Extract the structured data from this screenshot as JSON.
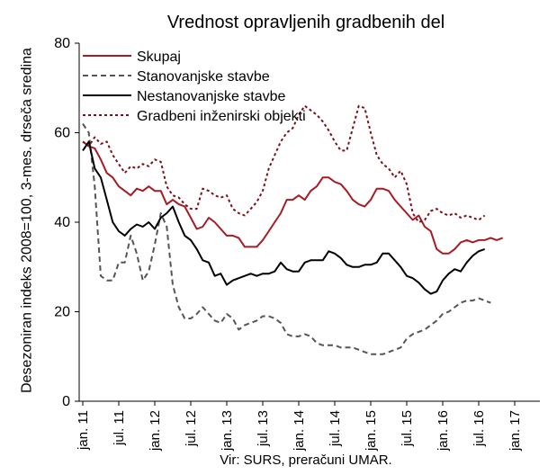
{
  "chart_data": {
    "type": "line",
    "title": "Vrednost opravljenih gradbenih del",
    "ylabel": "Desezoniran indeks 2008=100, 3-mes. drseča sredina",
    "xlabel": "",
    "source": "Vir: SURS, preračuni UMAR.",
    "ylim": [
      0,
      80
    ],
    "yticks": [
      0,
      20,
      40,
      60,
      80
    ],
    "x_ticks": [
      "jan. 11",
      "jul. 11",
      "jan. 12",
      "jul. 12",
      "jan. 13",
      "jul. 13",
      "jan. 14",
      "jul. 14",
      "jan. 15",
      "jul. 15",
      "jan. 16",
      "jul. 16",
      "jan. 17"
    ],
    "legend_position": "top-left inside",
    "series": [
      {
        "name": "Skupaj",
        "color": "#a51c24",
        "dash": "solid",
        "values": [
          58,
          57,
          56.5,
          54,
          51,
          50,
          48,
          47,
          46,
          47.5,
          47,
          48,
          47,
          47,
          44,
          45,
          44,
          43.5,
          41,
          38.5,
          39,
          41,
          40,
          38.5,
          37,
          37,
          36.5,
          34.5,
          34.5,
          34.5,
          36,
          38,
          40,
          42,
          45,
          45,
          46,
          45,
          47,
          48,
          50,
          50,
          49,
          48.5,
          47,
          45,
          44,
          43.5,
          45,
          47.5,
          47.5,
          47,
          45,
          43.5,
          42,
          40.5,
          41.5,
          39,
          38,
          34,
          33,
          33,
          34,
          35.5,
          36,
          35.5,
          36,
          36,
          36.5,
          36,
          36.5
        ]
      },
      {
        "name": "Stanovanjske stavbe",
        "color": "#555555",
        "dash": "dashed",
        "values": [
          62,
          60,
          48,
          28,
          27,
          27,
          31,
          31,
          37,
          33,
          27,
          29,
          35,
          42,
          39,
          26,
          21,
          18.5,
          18.5,
          19.5,
          21,
          19.5,
          18,
          17.5,
          19.5,
          18.5,
          16,
          17,
          17.5,
          18,
          19,
          19,
          18.5,
          17.5,
          15,
          14.5,
          14.5,
          15,
          14.5,
          13,
          12.5,
          12.5,
          12.5,
          12,
          12,
          12,
          11.5,
          11,
          10.5,
          10.5,
          10.5,
          11,
          11.5,
          12,
          14,
          15,
          15.5,
          16,
          17,
          18,
          19.5,
          20,
          21,
          22,
          22.5,
          22.5,
          23,
          22.5,
          22
        ]
      },
      {
        "name": "Nestanovanjske stavbe",
        "color": "#000000",
        "dash": "solid",
        "values": [
          56,
          58,
          52,
          50,
          45,
          40,
          38,
          37,
          38.5,
          39.5,
          39,
          40,
          38.5,
          41,
          42,
          43.5,
          40,
          37,
          36,
          34,
          31.5,
          31,
          28,
          28.5,
          26,
          27,
          27.5,
          28,
          28.5,
          28,
          28.5,
          28.5,
          29,
          31,
          29.5,
          29,
          29,
          31,
          31.5,
          31.5,
          31.5,
          33.5,
          33,
          32,
          30.5,
          30,
          30,
          30.5,
          30.5,
          31,
          33,
          33,
          31.5,
          30,
          28,
          27.5,
          26.5,
          25,
          24,
          24.5,
          27,
          28.5,
          29.5,
          29,
          31,
          32.5,
          33.5,
          34
        ]
      },
      {
        "name": "Gradbeni inženirski objekti",
        "color": "#7a1018",
        "dash": "dotted",
        "values": [
          58,
          57,
          59,
          57.5,
          58,
          55,
          53,
          51,
          52.5,
          52,
          53,
          52.5,
          54,
          53.5,
          48,
          46,
          45.5,
          44,
          43,
          43,
          47.5,
          47,
          46,
          45.5,
          46,
          43,
          42,
          41.5,
          43,
          44.5,
          47,
          52,
          55,
          58,
          60,
          61,
          64,
          66,
          65,
          64,
          62.5,
          60.5,
          58,
          56,
          56,
          61,
          66,
          65.5,
          60,
          55,
          53,
          52,
          50,
          51.5,
          48.5,
          42,
          40,
          40.5,
          42.5,
          43,
          42,
          41.5,
          42,
          41,
          41.5,
          41,
          40.5,
          41.5
        ]
      }
    ]
  }
}
